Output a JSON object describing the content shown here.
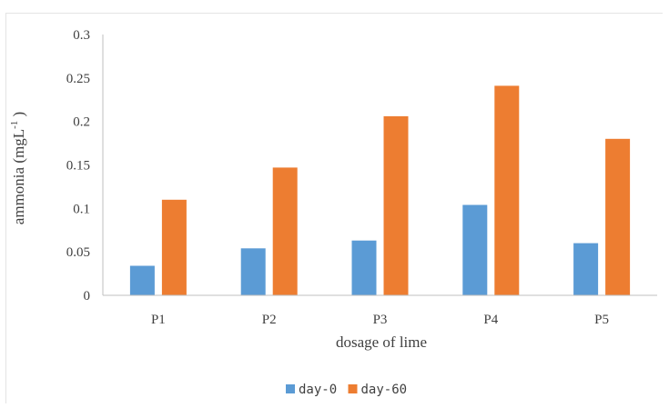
{
  "chart_data": {
    "type": "bar",
    "categories": [
      "P1",
      "P2",
      "P3",
      "P4",
      "P5"
    ],
    "series": [
      {
        "name": "day-0",
        "values": [
          0.034,
          0.054,
          0.063,
          0.104,
          0.06
        ],
        "color": "#5b9bd5"
      },
      {
        "name": "day-60",
        "values": [
          0.11,
          0.147,
          0.206,
          0.241,
          0.18
        ],
        "color": "#ed7d31"
      }
    ],
    "title": "",
    "xlabel": "dosage of lime",
    "ylabel": "ammonia (mgL",
    "ylabel_superscript": "-1",
    "ylabel_suffix": " )",
    "ylim": [
      0,
      0.3
    ],
    "yticks": [
      "0",
      "0.05",
      "0.1",
      "0.15",
      "0.2",
      "0.25",
      "0.3"
    ],
    "grid": false,
    "legend": "bottom"
  }
}
